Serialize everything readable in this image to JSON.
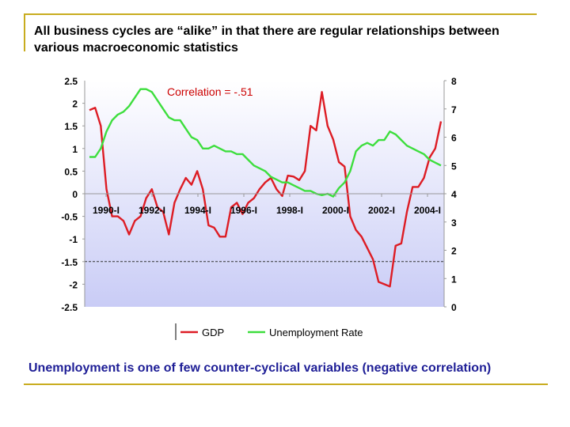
{
  "slide": {
    "title": "All business cycles are “alike” in that there are regular relationships between various macroeconomic statistics",
    "caption": "Unemployment is one of few counter-cyclical variables (negative correlation)",
    "rule_color": "#c8ac1e",
    "caption_color": "#1e1e96"
  },
  "chart_data": {
    "type": "line",
    "annotation": "Correlation = -.51",
    "annotation_color": "#cc0000",
    "plot_background": [
      "#ffffff",
      "#c9ccf6"
    ],
    "grid": false,
    "reference_line": {
      "axis": "y_left",
      "value": -1.5,
      "style": "dashed"
    },
    "x_ticks": [
      "1990-I",
      "1992-I",
      "1994-I",
      "1996-I",
      "1998-I",
      "2000-I",
      "2002-I",
      "2004-I"
    ],
    "x_start": "1990-I",
    "y_left": {
      "range": [
        -2.5,
        2.5
      ],
      "ticks": [
        "2.5",
        "2",
        "1.5",
        "1",
        "0.5",
        "0",
        "-0.5",
        "-1",
        "-1.5",
        "-2",
        "-2.5"
      ]
    },
    "y_right": {
      "range": [
        0,
        8
      ],
      "ticks": [
        "8",
        "7",
        "6",
        "5",
        "4",
        "3",
        "2",
        "1",
        "0"
      ]
    },
    "legend": {
      "placement": "bottom"
    },
    "series": [
      {
        "name": "GDP",
        "axis": "left",
        "color": "#dd1c24",
        "values": [
          1.85,
          1.9,
          1.5,
          0.1,
          -0.5,
          -0.5,
          -0.6,
          -0.9,
          -0.6,
          -0.5,
          -0.1,
          0.1,
          -0.3,
          -0.4,
          -0.9,
          -0.2,
          0.1,
          0.35,
          0.2,
          0.5,
          0.1,
          -0.7,
          -0.75,
          -0.95,
          -0.95,
          -0.3,
          -0.2,
          -0.45,
          -0.2,
          -0.1,
          0.1,
          0.25,
          0.35,
          0.1,
          -0.05,
          0.4,
          0.38,
          0.3,
          0.5,
          1.5,
          1.4,
          2.25,
          1.5,
          1.2,
          0.7,
          0.6,
          -0.5,
          -0.8,
          -0.95,
          -1.2,
          -1.45,
          -1.95,
          -2.0,
          -2.05,
          -1.15,
          -1.1,
          -0.4,
          0.15,
          0.15,
          0.35,
          0.8,
          1.0,
          1.6
        ]
      },
      {
        "name": "Unemployment Rate",
        "axis": "right",
        "color": "#3dde3d",
        "values": [
          5.3,
          5.3,
          5.6,
          6.2,
          6.6,
          6.8,
          6.9,
          7.1,
          7.4,
          7.7,
          7.7,
          7.6,
          7.3,
          7.0,
          6.7,
          6.6,
          6.6,
          6.3,
          6.0,
          5.9,
          5.6,
          5.6,
          5.7,
          5.6,
          5.5,
          5.5,
          5.4,
          5.4,
          5.2,
          5.0,
          4.9,
          4.8,
          4.6,
          4.5,
          4.4,
          4.4,
          4.3,
          4.2,
          4.1,
          4.1,
          4.0,
          3.95,
          4.0,
          3.9,
          4.2,
          4.4,
          4.8,
          5.5,
          5.7,
          5.8,
          5.7,
          5.9,
          5.9,
          6.2,
          6.1,
          5.9,
          5.7,
          5.6,
          5.5,
          5.4,
          5.2,
          5.1,
          5.0
        ]
      }
    ]
  }
}
